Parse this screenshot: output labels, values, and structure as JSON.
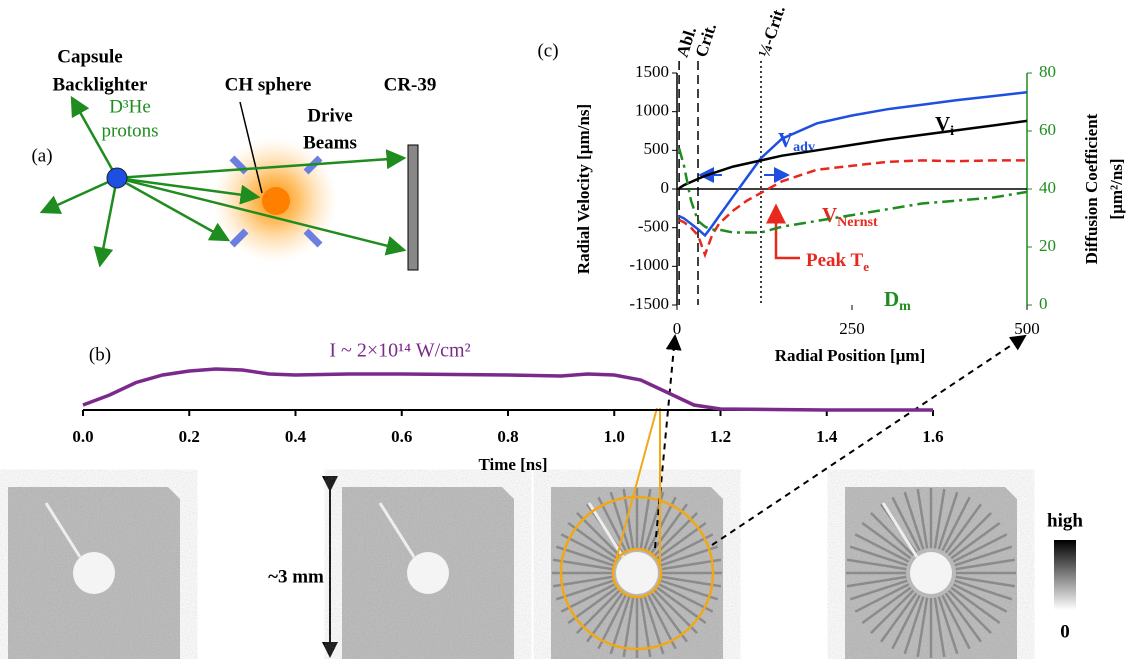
{
  "panel_a": {
    "label": "(a)",
    "capsule": "Capsule",
    "backlighter": "Backlighter",
    "species": "D³He",
    "particles": "protons",
    "target": "CH sphere",
    "drive_1": "Drive",
    "drive_2": "Beams",
    "detector": "CR-39"
  },
  "chart_data": [
    {
      "type": "line",
      "panel": "(b)",
      "annotation": "I ~ 2×10¹⁴ W/cm²",
      "xlabel": "Time [ns]",
      "color": "#7b2a8c",
      "x": [
        0,
        0.05,
        0.1,
        0.15,
        0.2,
        0.25,
        0.3,
        0.35,
        0.4,
        0.5,
        0.6,
        0.7,
        0.8,
        0.9,
        0.95,
        1.0,
        1.05,
        1.1,
        1.15,
        1.2,
        1.3,
        1.4,
        1.6
      ],
      "values": [
        0.1,
        0.3,
        0.55,
        0.7,
        0.78,
        0.82,
        0.8,
        0.72,
        0.7,
        0.72,
        0.72,
        0.71,
        0.7,
        0.68,
        0.72,
        0.7,
        0.6,
        0.35,
        0.1,
        0.02,
        0.01,
        0,
        0
      ],
      "xlim": [
        0,
        1.6
      ],
      "ylim": [
        0,
        1
      ],
      "xticks": [
        {
          "value": 0,
          "label": "0.0"
        },
        0.2,
        0.4,
        0.6,
        0.8,
        {
          "value": 1,
          "label": "1.0"
        },
        1.2,
        1.4,
        1.6
      ]
    },
    {
      "type": "line",
      "panel": "(c)",
      "xlabel": "Radial Position [µm]",
      "ylabel": "Radial Velocity [µm/ns]",
      "y2label": [
        "Diffusion Coefficient",
        "[µm²/ns]"
      ],
      "x": [
        3,
        10,
        20,
        30,
        40,
        50,
        60,
        80,
        100,
        120,
        150,
        200,
        250,
        300,
        350,
        400,
        450,
        500
      ],
      "series": [
        {
          "name": "V",
          "subscript": "adv",
          "color": "#1f4fe0",
          "dash": "solid",
          "values": [
            -350,
            -380,
            -450,
            -520,
            -600,
            -480,
            -350,
            -100,
            150,
            400,
            650,
            850,
            950,
            1030,
            1090,
            1150,
            1200,
            1250
          ]
        },
        {
          "name": "V",
          "subscript": "i",
          "color": "#000000",
          "dash": "solid",
          "values": [
            10,
            50,
            90,
            130,
            170,
            200,
            230,
            290,
            330,
            370,
            430,
            500,
            570,
            640,
            700,
            760,
            820,
            880
          ]
        },
        {
          "name": "V",
          "subscript": "Nernst",
          "color": "#e8281e",
          "dash": "dashed",
          "values": [
            -400,
            -430,
            -500,
            -600,
            -850,
            -600,
            -450,
            -280,
            -150,
            -50,
            100,
            250,
            300,
            350,
            370,
            360,
            370,
            370
          ]
        },
        {
          "name": "D",
          "subscript": "m",
          "color": "#1e8c1e",
          "dash": "dashdot",
          "axis": "y2",
          "values": [
            54,
            48,
            36,
            29,
            27,
            26,
            26,
            25,
            25,
            25,
            27,
            29,
            31,
            33,
            35,
            36,
            37,
            39
          ]
        }
      ],
      "vlines": [
        {
          "x": 3,
          "label": "Abl.",
          "style": "dashed"
        },
        {
          "x": 30,
          "label": "Crit.",
          "style": "dashed"
        },
        {
          "x": 120,
          "label": "¼-Crit.",
          "style": "dotted"
        }
      ],
      "annotation": {
        "text": "Peak T",
        "subscript": "e"
      },
      "xlim": [
        0,
        500
      ],
      "xticks": [
        0,
        250,
        500
      ],
      "ylim": [
        -1500,
        1500
      ],
      "yticks": [
        -1500,
        -1000,
        -500,
        0,
        500,
        1000,
        1500
      ],
      "y2lim": [
        0,
        80
      ],
      "y2ticks": [
        0,
        20,
        40,
        60,
        80
      ],
      "y2color": "#1e8c1e"
    }
  ],
  "images": {
    "scale": "~3 mm",
    "colorbar_high": "high",
    "colorbar_low": "0"
  }
}
